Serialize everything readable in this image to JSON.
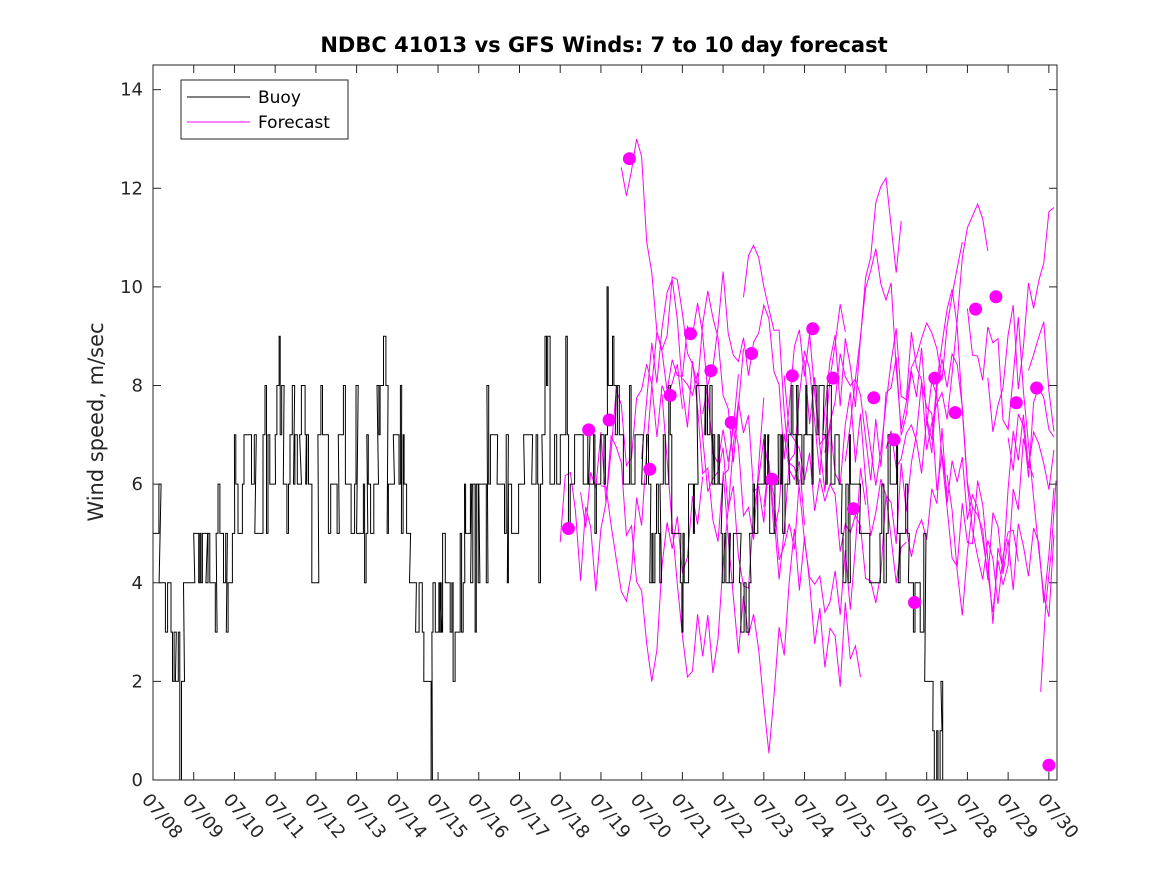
{
  "chart_data": {
    "type": "line",
    "title": "NDBC 41013 vs GFS Winds: 7 to 10 day forecast",
    "xlabel": "",
    "ylabel": "Wind speed, m/sec",
    "ylim": [
      0,
      14.5
    ],
    "yticks": [
      0,
      2,
      4,
      6,
      8,
      10,
      12,
      14
    ],
    "xlim_days": [
      0,
      22.2
    ],
    "xtick_labels": [
      "07/08",
      "07/09",
      "07/10",
      "07/11",
      "07/12",
      "07/13",
      "07/14",
      "07/15",
      "07/16",
      "07/17",
      "07/18",
      "07/19",
      "07/20",
      "07/21",
      "07/22",
      "07/23",
      "07/24",
      "07/25",
      "07/26",
      "07/27",
      "07/28",
      "07/29",
      "07/30"
    ],
    "legend": {
      "position": "top-left",
      "entries": [
        "Buoy",
        "Forecast"
      ]
    },
    "colors": {
      "buoy": "#000000",
      "forecast": "#ff00ff"
    },
    "grid": false,
    "buoy_segments": [
      [
        0.0,
        5
      ],
      [
        0.15,
        4
      ],
      [
        0.4,
        3
      ],
      [
        0.55,
        2
      ],
      [
        0.75,
        4
      ],
      [
        1.0,
        5
      ],
      [
        1.3,
        4
      ],
      [
        1.55,
        5
      ],
      [
        1.8,
        4
      ],
      [
        2.0,
        6
      ],
      [
        2.25,
        7
      ],
      [
        2.5,
        5
      ],
      [
        2.75,
        6
      ],
      [
        3.0,
        7
      ],
      [
        3.2,
        6
      ],
      [
        3.45,
        7
      ],
      [
        3.6,
        8
      ],
      [
        3.75,
        6
      ],
      [
        3.9,
        4
      ],
      [
        4.05,
        7
      ],
      [
        4.25,
        6
      ],
      [
        4.55,
        7
      ],
      [
        4.75,
        6
      ],
      [
        5.0,
        5
      ],
      [
        5.25,
        6
      ],
      [
        5.5,
        8
      ],
      [
        5.75,
        6
      ],
      [
        5.9,
        7
      ],
      [
        6.1,
        5
      ],
      [
        6.3,
        4
      ],
      [
        6.45,
        3
      ],
      [
        6.65,
        2
      ],
      [
        6.85,
        3
      ],
      [
        7.05,
        4
      ],
      [
        7.25,
        3
      ],
      [
        7.45,
        4
      ],
      [
        7.65,
        5
      ],
      [
        7.8,
        4
      ],
      [
        8.0,
        6
      ],
      [
        8.2,
        7
      ],
      [
        8.45,
        6
      ],
      [
        8.7,
        5
      ],
      [
        8.9,
        6
      ],
      [
        9.1,
        7
      ],
      [
        9.3,
        6
      ],
      [
        9.55,
        7
      ],
      [
        9.75,
        6
      ],
      [
        9.95,
        7
      ],
      [
        10.2,
        6
      ],
      [
        10.45,
        7
      ],
      [
        10.7,
        6
      ],
      [
        10.95,
        7
      ],
      [
        11.15,
        8
      ],
      [
        11.35,
        7
      ],
      [
        11.55,
        6
      ],
      [
        11.8,
        7
      ],
      [
        12.0,
        6
      ],
      [
        12.2,
        5
      ],
      [
        12.45,
        6
      ],
      [
        12.7,
        5
      ],
      [
        12.95,
        4
      ],
      [
        13.15,
        6
      ],
      [
        13.35,
        8
      ],
      [
        13.55,
        7
      ],
      [
        13.75,
        6
      ],
      [
        13.95,
        5
      ],
      [
        14.15,
        4
      ],
      [
        14.4,
        3
      ],
      [
        14.65,
        5
      ],
      [
        14.85,
        6
      ],
      [
        15.1,
        5
      ],
      [
        15.35,
        6
      ],
      [
        15.6,
        7
      ],
      [
        15.8,
        8
      ],
      [
        16.0,
        7
      ],
      [
        16.2,
        8
      ],
      [
        16.45,
        7
      ],
      [
        16.65,
        6
      ],
      [
        16.9,
        5
      ],
      [
        17.1,
        6
      ],
      [
        17.35,
        5
      ],
      [
        17.6,
        4
      ],
      [
        17.85,
        5
      ],
      [
        18.05,
        6
      ],
      [
        18.3,
        5
      ],
      [
        18.55,
        4
      ],
      [
        18.75,
        3
      ],
      [
        18.95,
        2
      ],
      [
        19.15,
        1
      ],
      [
        19.35,
        0
      ]
    ],
    "forecast_markers": [
      {
        "x": 10.2,
        "y": 5.1
      },
      {
        "x": 10.7,
        "y": 7.1
      },
      {
        "x": 11.2,
        "y": 7.3
      },
      {
        "x": 11.7,
        "y": 12.6
      },
      {
        "x": 12.2,
        "y": 6.3
      },
      {
        "x": 12.7,
        "y": 7.8
      },
      {
        "x": 13.2,
        "y": 9.05
      },
      {
        "x": 13.7,
        "y": 8.3
      },
      {
        "x": 14.2,
        "y": 7.25
      },
      {
        "x": 14.7,
        "y": 8.65
      },
      {
        "x": 15.2,
        "y": 6.1
      },
      {
        "x": 15.7,
        "y": 8.2
      },
      {
        "x": 16.2,
        "y": 9.15
      },
      {
        "x": 16.7,
        "y": 8.15
      },
      {
        "x": 17.2,
        "y": 5.5
      },
      {
        "x": 17.7,
        "y": 7.75
      },
      {
        "x": 18.2,
        "y": 6.9
      },
      {
        "x": 18.7,
        "y": 3.6
      },
      {
        "x": 19.2,
        "y": 8.15
      },
      {
        "x": 19.7,
        "y": 7.45
      },
      {
        "x": 20.2,
        "y": 9.55
      },
      {
        "x": 20.7,
        "y": 9.8
      },
      {
        "x": 21.2,
        "y": 7.65
      },
      {
        "x": 21.7,
        "y": 7.95
      },
      {
        "x": 22.0,
        "y": 0.3
      }
    ]
  }
}
